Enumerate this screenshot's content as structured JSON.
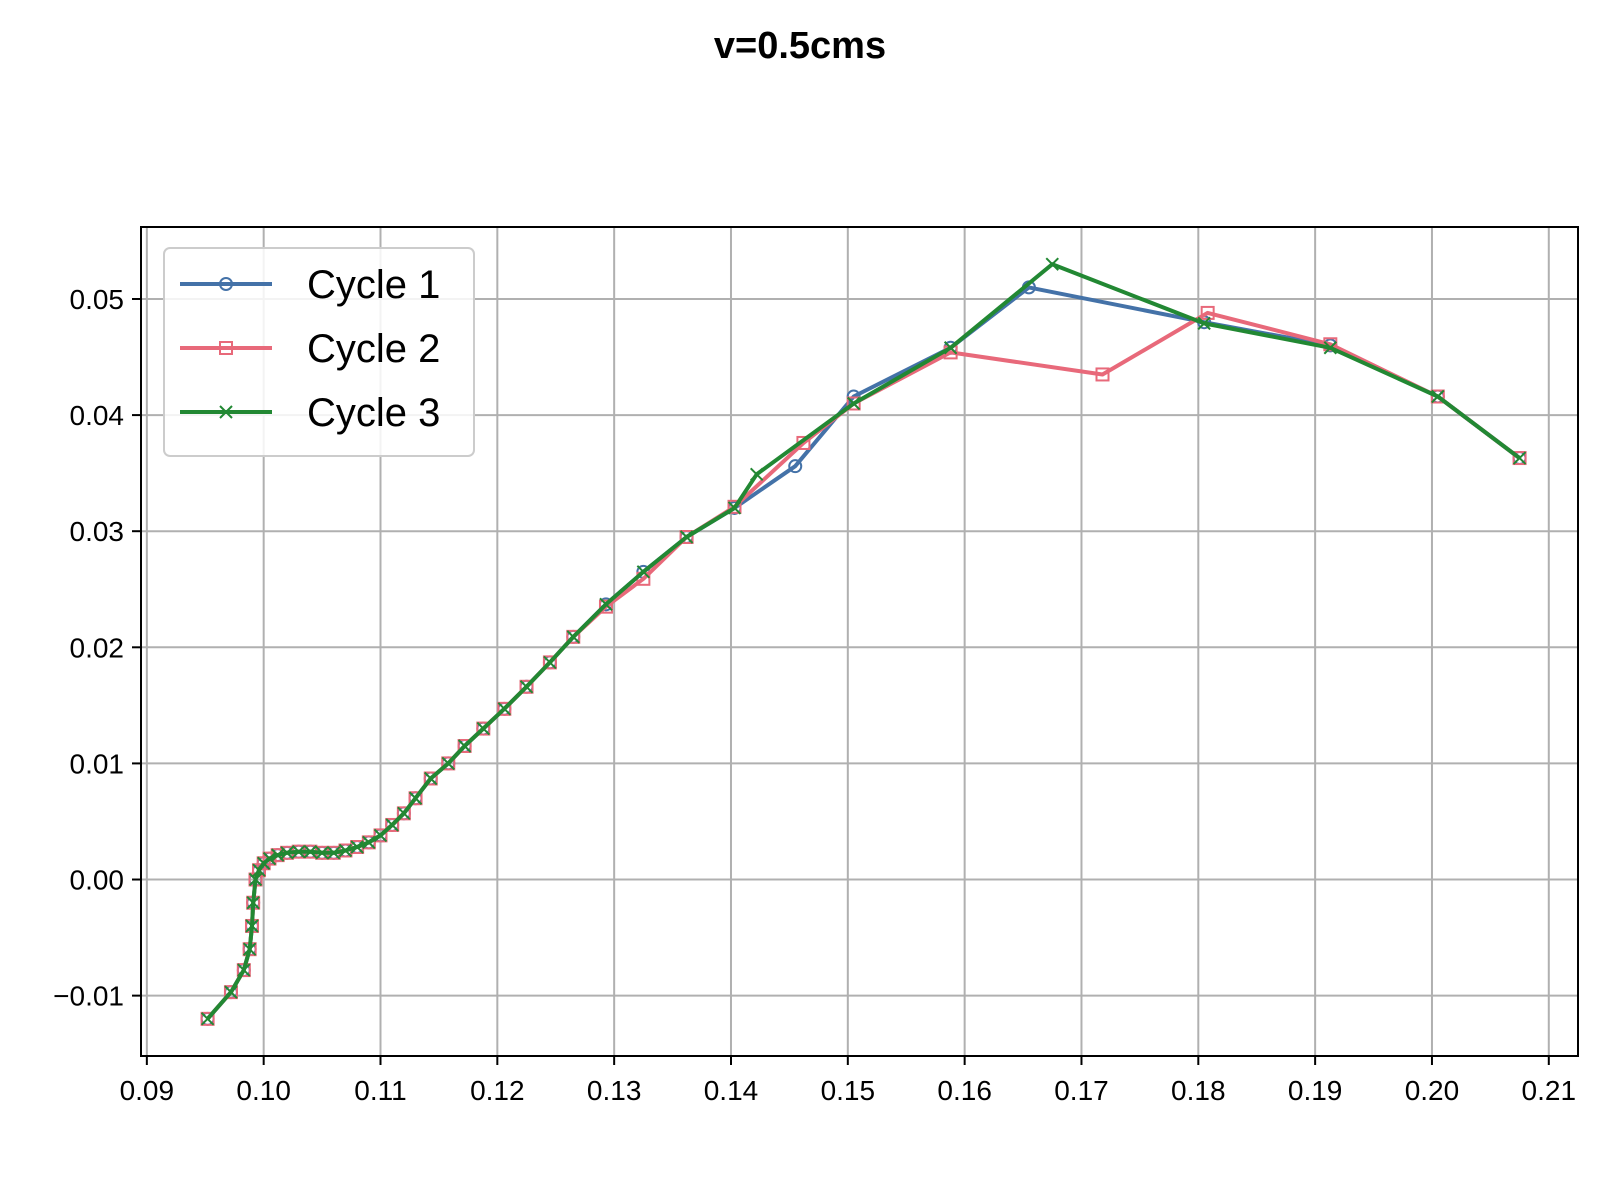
{
  "chart_data": {
    "type": "line",
    "title": "v=0.5cms",
    "xlabel": "",
    "ylabel": "",
    "xlim": [
      0.0895,
      0.2125
    ],
    "ylim": [
      -0.0152,
      0.0562
    ],
    "xticks": [
      0.09,
      0.1,
      0.11,
      0.12,
      0.13,
      0.14,
      0.15,
      0.16,
      0.17,
      0.18,
      0.19,
      0.2,
      0.21
    ],
    "xtick_labels": [
      "0.09",
      "0.10",
      "0.11",
      "0.12",
      "0.13",
      "0.14",
      "0.15",
      "0.16",
      "0.17",
      "0.18",
      "0.19",
      "0.20",
      "0.21"
    ],
    "yticks": [
      -0.01,
      0.0,
      0.01,
      0.02,
      0.03,
      0.04,
      0.05
    ],
    "ytick_labels": [
      "−0.01",
      "0.00",
      "0.01",
      "0.02",
      "0.03",
      "0.04",
      "0.05"
    ],
    "grid": true,
    "legend_position": "upper-left",
    "series": [
      {
        "name": "Cycle 1",
        "color": "#4472a8",
        "marker": "circle",
        "x": [
          0.0952,
          0.0972,
          0.0983,
          0.0988,
          0.099,
          0.0991,
          0.0993,
          0.0996,
          0.1,
          0.1005,
          0.1012,
          0.102,
          0.103,
          0.104,
          0.105,
          0.106,
          0.107,
          0.108,
          0.109,
          0.11,
          0.111,
          0.112,
          0.113,
          0.1143,
          0.1158,
          0.1172,
          0.1188,
          0.1206,
          0.1225,
          0.1245,
          0.1265,
          0.1293,
          0.1325,
          0.1362,
          0.1403,
          0.1455,
          0.1505,
          0.1588,
          0.1655,
          0.1805,
          0.1913,
          0.2005,
          0.2075
        ],
        "y": [
          -0.012,
          -0.0097,
          -0.0078,
          -0.006,
          -0.004,
          -0.002,
          0.0,
          0.0008,
          0.0014,
          0.0018,
          0.0021,
          0.0023,
          0.0024,
          0.0024,
          0.0023,
          0.0023,
          0.0025,
          0.0028,
          0.0032,
          0.0038,
          0.0047,
          0.0057,
          0.007,
          0.0087,
          0.01,
          0.0115,
          0.013,
          0.0147,
          0.0166,
          0.0187,
          0.0209,
          0.0237,
          0.0265,
          0.0295,
          0.032,
          0.0356,
          0.0416,
          0.0458,
          0.051,
          0.048,
          0.046,
          0.0416,
          0.0363
        ]
      },
      {
        "name": "Cycle 2",
        "color": "#e8697a",
        "marker": "square",
        "x": [
          0.0952,
          0.0972,
          0.0983,
          0.0988,
          0.099,
          0.0991,
          0.0993,
          0.0996,
          0.1,
          0.1005,
          0.1012,
          0.102,
          0.103,
          0.104,
          0.105,
          0.106,
          0.107,
          0.108,
          0.109,
          0.11,
          0.111,
          0.112,
          0.113,
          0.1143,
          0.1158,
          0.1172,
          0.1188,
          0.1206,
          0.1225,
          0.1245,
          0.1265,
          0.1293,
          0.1325,
          0.1362,
          0.1403,
          0.1462,
          0.1505,
          0.1588,
          0.1718,
          0.1808,
          0.1913,
          0.2005,
          0.2075
        ],
        "y": [
          -0.012,
          -0.0097,
          -0.0078,
          -0.006,
          -0.004,
          -0.002,
          0.0,
          0.0008,
          0.0014,
          0.0018,
          0.0021,
          0.0023,
          0.0024,
          0.0024,
          0.0023,
          0.0023,
          0.0025,
          0.0028,
          0.0032,
          0.0038,
          0.0047,
          0.0057,
          0.007,
          0.0087,
          0.01,
          0.0115,
          0.013,
          0.0147,
          0.0166,
          0.0187,
          0.0209,
          0.0235,
          0.0259,
          0.0295,
          0.0321,
          0.0376,
          0.041,
          0.0454,
          0.0435,
          0.0488,
          0.0461,
          0.0416,
          0.0363
        ]
      },
      {
        "name": "Cycle 3",
        "color": "#228833",
        "marker": "x",
        "x": [
          0.0952,
          0.0972,
          0.0983,
          0.0988,
          0.099,
          0.0991,
          0.0993,
          0.0996,
          0.1,
          0.1005,
          0.1012,
          0.102,
          0.103,
          0.104,
          0.105,
          0.106,
          0.107,
          0.108,
          0.109,
          0.11,
          0.111,
          0.112,
          0.113,
          0.1143,
          0.1158,
          0.1172,
          0.1188,
          0.1206,
          0.1225,
          0.1245,
          0.1265,
          0.1293,
          0.1325,
          0.1362,
          0.1403,
          0.1422,
          0.1505,
          0.1588,
          0.1675,
          0.1805,
          0.1913,
          0.2005,
          0.2075
        ],
        "y": [
          -0.012,
          -0.0097,
          -0.0078,
          -0.006,
          -0.004,
          -0.002,
          0.0,
          0.0008,
          0.0014,
          0.0018,
          0.0021,
          0.0023,
          0.0024,
          0.0024,
          0.0023,
          0.0023,
          0.0025,
          0.0028,
          0.0032,
          0.0038,
          0.0047,
          0.0057,
          0.007,
          0.0087,
          0.01,
          0.0115,
          0.013,
          0.0147,
          0.0166,
          0.0187,
          0.0209,
          0.0237,
          0.0265,
          0.0295,
          0.032,
          0.0349,
          0.041,
          0.0458,
          0.053,
          0.0479,
          0.0458,
          0.0416,
          0.0363
        ]
      }
    ]
  }
}
